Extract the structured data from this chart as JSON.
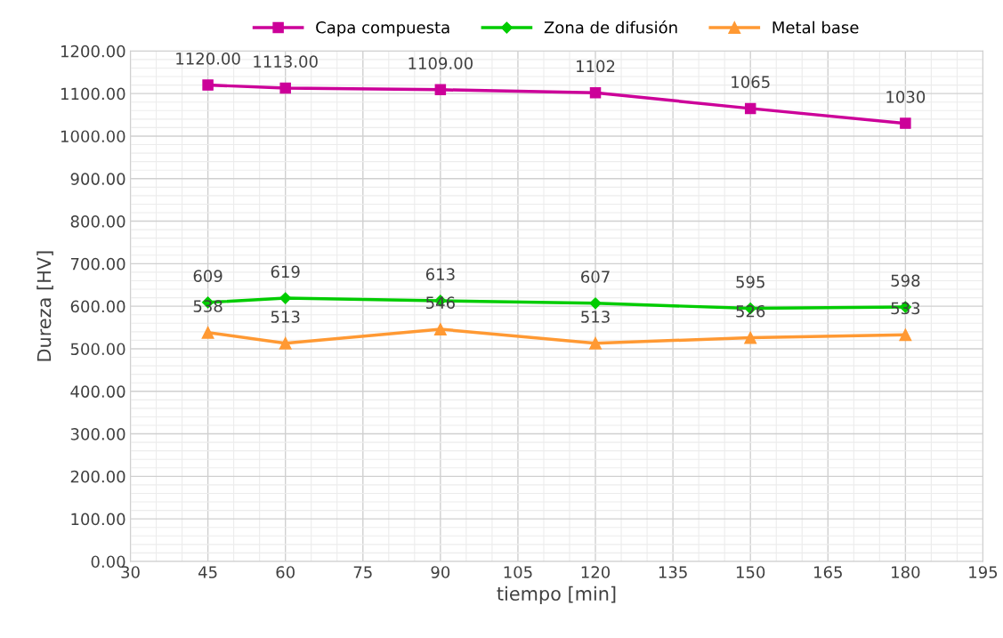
{
  "chart_data": {
    "type": "line",
    "xlabel": "tiempo [min]",
    "ylabel": "Dureza [HV]",
    "x": [
      45,
      60,
      90,
      120,
      150,
      180
    ],
    "series": [
      {
        "name": "Capa compuesta",
        "color": "#cc0099",
        "marker": "square",
        "values": [
          1120,
          1113,
          1109,
          1102,
          1065,
          1030
        ],
        "value_labels": [
          "1120.00",
          "1113.00",
          "1109.00",
          "1102",
          "1065",
          "1030"
        ]
      },
      {
        "name": "Zona de difusión",
        "color": "#00cc00",
        "marker": "diamond",
        "values": [
          609,
          619,
          613,
          607,
          595,
          598
        ],
        "value_labels": [
          "609",
          "619",
          "613",
          "607",
          "595",
          "598"
        ]
      },
      {
        "name": "Metal base",
        "color": "#ff9933",
        "marker": "triangle",
        "values": [
          538,
          513,
          546,
          513,
          526,
          533
        ],
        "value_labels": [
          "538",
          "513",
          "546",
          "513",
          "526",
          "533"
        ]
      }
    ],
    "xlim": [
      30,
      195
    ],
    "xticks": [
      30,
      45,
      60,
      75,
      90,
      105,
      120,
      135,
      150,
      165,
      180,
      195
    ],
    "ylim": [
      0,
      1200
    ],
    "yticks": [
      {
        "value": 0,
        "label": "0.00"
      },
      {
        "value": 100,
        "label": "100.00"
      },
      {
        "value": 200,
        "label": "200.00"
      },
      {
        "value": 300,
        "label": "300.00"
      },
      {
        "value": 400,
        "label": "400.00"
      },
      {
        "value": 500,
        "label": "500.00"
      },
      {
        "value": 600,
        "label": "600.00"
      },
      {
        "value": 700,
        "label": "700.00"
      },
      {
        "value": 800,
        "label": "800.00"
      },
      {
        "value": 900,
        "label": "900.00"
      },
      {
        "value": 1000,
        "label": "1000.00"
      },
      {
        "value": 1100,
        "label": "1100.00"
      },
      {
        "value": 1200,
        "label": "1200.00"
      }
    ],
    "grid": true,
    "legend": "top",
    "line_style": "solid"
  }
}
